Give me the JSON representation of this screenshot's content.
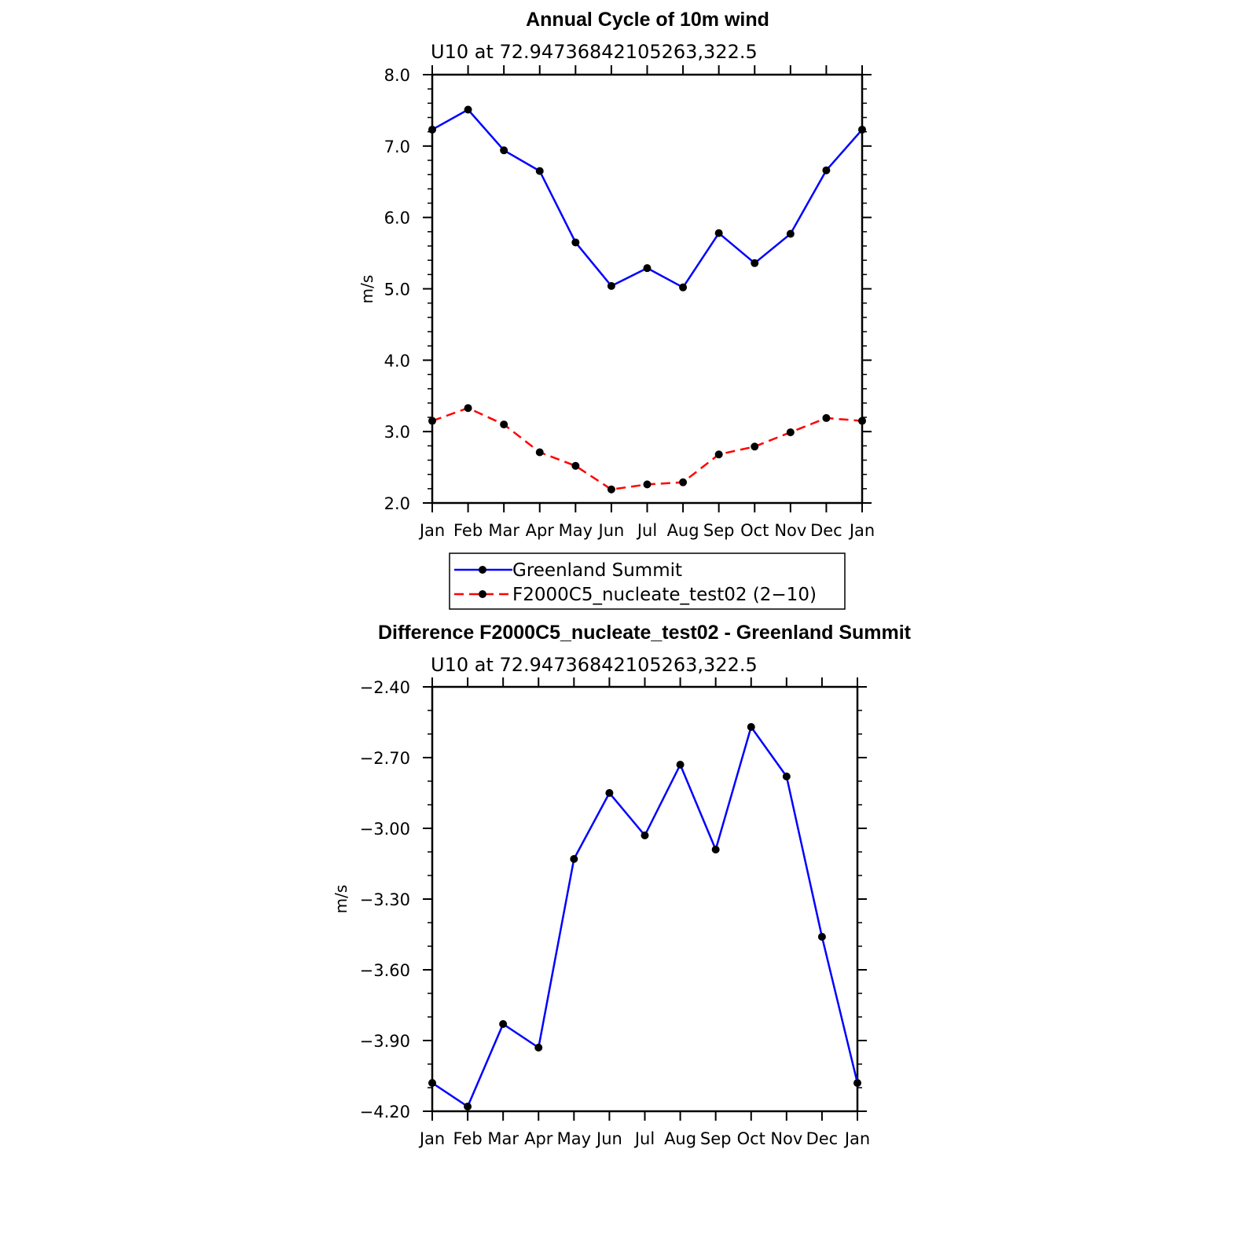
{
  "chart_data": [
    {
      "type": "line",
      "title": "Annual Cycle of 10m wind",
      "subtitle": "U10  at  72.94736842105263,322.5",
      "ylabel": "m/s",
      "xlabel": "",
      "categories": [
        "Jan",
        "Feb",
        "Mar",
        "Apr",
        "May",
        "Jun",
        "Jul",
        "Aug",
        "Sep",
        "Oct",
        "Nov",
        "Dec",
        "Jan"
      ],
      "ylim": [
        2.0,
        8.0
      ],
      "yticks": [
        2.0,
        3.0,
        4.0,
        5.0,
        6.0,
        7.0,
        8.0
      ],
      "ytick_labels": [
        "2.0",
        "3.0",
        "4.0",
        "5.0",
        "6.0",
        "7.0",
        "8.0"
      ],
      "series": [
        {
          "name": "Greenland Summit",
          "color": "#0000ff",
          "dash": "solid",
          "values": [
            7.23,
            7.51,
            6.94,
            6.65,
            5.65,
            5.04,
            5.29,
            5.02,
            5.78,
            5.36,
            5.77,
            6.66,
            7.23
          ]
        },
        {
          "name": "F2000C5_nucleate_test02 (2−10)",
          "color": "#ff0000",
          "dash": "dashed",
          "values": [
            3.15,
            3.33,
            3.1,
            2.71,
            2.52,
            2.19,
            2.26,
            2.29,
            2.68,
            2.79,
            2.99,
            3.19,
            3.15
          ]
        }
      ],
      "legend": "bottom"
    },
    {
      "type": "line",
      "title": "Difference F2000C5_nucleate_test02 - Greenland Summit",
      "subtitle": "U10  at  72.94736842105263,322.5",
      "ylabel": "m/s",
      "xlabel": "",
      "categories": [
        "Jan",
        "Feb",
        "Mar",
        "Apr",
        "May",
        "Jun",
        "Jul",
        "Aug",
        "Sep",
        "Oct",
        "Nov",
        "Dec",
        "Jan"
      ],
      "ylim": [
        -4.2,
        -2.4
      ],
      "yticks": [
        -4.2,
        -3.9,
        -3.6,
        -3.3,
        -3.0,
        -2.7,
        -2.4
      ],
      "ytick_labels": [
        "−4.20",
        "−3.90",
        "−3.60",
        "−3.30",
        "−3.00",
        "−2.70",
        "−2.40"
      ],
      "series": [
        {
          "name": "Difference",
          "color": "#0000ff",
          "dash": "solid",
          "values": [
            -4.08,
            -4.18,
            -3.83,
            -3.93,
            -3.13,
            -2.85,
            -3.03,
            -2.73,
            -3.09,
            -2.57,
            -2.78,
            -3.46,
            -4.08
          ]
        }
      ]
    }
  ]
}
